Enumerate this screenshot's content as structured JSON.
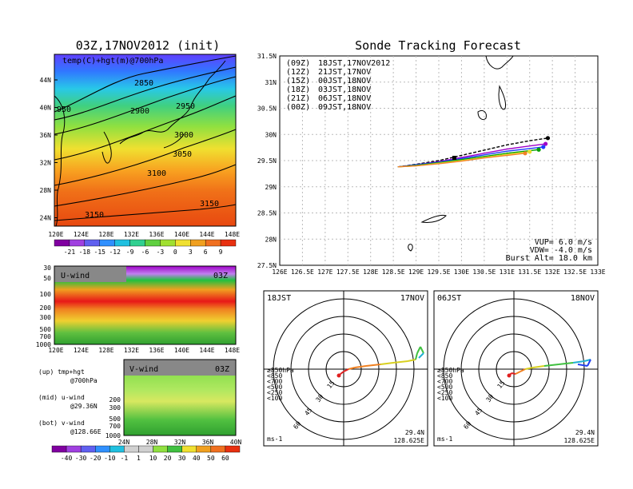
{
  "left": {
    "title": "03Z,17NOV2012 (init)",
    "map_label": "temp(C)+hgt(m)@700hPa",
    "lat_ticks": [
      "44N",
      "40N",
      "36N",
      "32N",
      "28N",
      "24N"
    ],
    "lon_ticks": [
      "120E",
      "124E",
      "128E",
      "132E",
      "136E",
      "140E",
      "144E",
      "148E"
    ],
    "contour_labels": [
      "2850",
      "2900",
      "2950",
      "950",
      "3000",
      "3050",
      "3100",
      "3150",
      "3150"
    ],
    "colorbar_temp": [
      "-21",
      "-18",
      "-15",
      "-12",
      "-9",
      "-6",
      "-3",
      "0",
      "3",
      "6",
      "9"
    ],
    "uwind": {
      "label": "U-wind",
      "time": "03Z",
      "y_ticks": [
        "30",
        "50",
        "100",
        "200",
        "300",
        "500",
        "700",
        "1000"
      ],
      "x_ticks": [
        "120E",
        "124E",
        "128E",
        "132E",
        "136E",
        "140E",
        "144E",
        "148E"
      ]
    },
    "vwind": {
      "label": "V-wind",
      "time": "03Z",
      "y_ticks": [
        "200",
        "300",
        "500",
        "700",
        "1000"
      ],
      "x_ticks": [
        "24N",
        "28N",
        "32N",
        "36N",
        "40N"
      ]
    },
    "legend": [
      "(up) tmp+hgt",
      "@700hPa",
      "(mid) u-wind",
      "@29.36N",
      "(bot) v-wind",
      "@128.66E"
    ],
    "colorbar_wind": [
      "-40",
      "-30",
      "-20",
      "-10",
      "-1",
      "1",
      "10",
      "20",
      "30",
      "40",
      "50",
      "60"
    ]
  },
  "tracking": {
    "title": "Sonde Tracking Forecast",
    "lat_ticks": [
      "31.5N",
      "31N",
      "30.5N",
      "30N",
      "29.5N",
      "29N",
      "28.5N",
      "28N",
      "27.5N"
    ],
    "lon_ticks": [
      "126E",
      "126.5E",
      "127E",
      "127.5E",
      "128E",
      "128.5E",
      "129E",
      "129.5E",
      "130E",
      "130.5E",
      "131E",
      "131.5E",
      "132E",
      "132.5E",
      "133E"
    ],
    "runs": [
      {
        "code": "(09Z)",
        "label": "18JST,17NOV2012",
        "color": "#000000"
      },
      {
        "code": "(12Z)",
        "label": "21JST,17NOV",
        "color": "#a000c8"
      },
      {
        "code": "(15Z)",
        "label": "00JST,18NOV",
        "color": "#1e3cff"
      },
      {
        "code": "(18Z)",
        "label": "03JST,18NOV",
        "color": "#00a000"
      },
      {
        "code": "(21Z)",
        "label": "06JST,18NOV",
        "color": "#e6dc32"
      },
      {
        "code": "(00Z)",
        "label": "09JST,18NOV",
        "color": "#f08228"
      }
    ],
    "params": [
      "VUP= 6.0 m/s",
      "VDW= -4.0 m/s",
      "Burst Alt= 18.0 km"
    ]
  },
  "hodographs": [
    {
      "time": "18JST",
      "date": "17NOV",
      "rings": [
        "15",
        "30",
        "45",
        "60"
      ],
      "unit": "ms-1",
      "lat": "29.4N",
      "lon": "128.625E",
      "levels": [
        "≥850hPa",
        "<850",
        "<700",
        "<500",
        "<250",
        "<100"
      ]
    },
    {
      "time": "06JST",
      "date": "18NOV",
      "rings": [
        "15",
        "30",
        "45",
        "60"
      ],
      "unit": "ms-1",
      "lat": "29.4N",
      "lon": "128.625E",
      "levels": [
        "≥850hPa",
        "<850",
        "<700",
        "<500",
        "<250",
        "<100"
      ]
    }
  ],
  "chart_data": [
    {
      "type": "heatmap",
      "title": "03Z,17NOV2012 (init)",
      "subtitle": "temp(C)+hgt(m)@700hPa",
      "x_ticks": [
        "120E",
        "124E",
        "128E",
        "132E",
        "136E",
        "140E",
        "144E",
        "148E"
      ],
      "y_ticks": [
        "44N",
        "40N",
        "36N",
        "32N",
        "28N",
        "24N"
      ],
      "levels": [
        -21,
        -18,
        -15,
        -12,
        -9,
        -6,
        -3,
        0,
        3,
        6,
        9
      ],
      "contours": [
        2850,
        2900,
        2950,
        3000,
        3050,
        3100,
        3150
      ]
    },
    {
      "type": "heatmap",
      "title": "U-wind",
      "y_ticks": [
        "30",
        "50",
        "100",
        "200",
        "300",
        "500",
        "700",
        "1000"
      ],
      "x_ticks": [
        "120E",
        "124E",
        "128E",
        "132E",
        "136E",
        "140E",
        "144E",
        "148E"
      ]
    },
    {
      "type": "heatmap",
      "title": "V-wind",
      "y_ticks": [
        "200",
        "300",
        "500",
        "700",
        "1000"
      ],
      "x_ticks": [
        "24N",
        "28N",
        "32N",
        "36N",
        "40N"
      ],
      "levels": [
        -40,
        -30,
        -20,
        -10,
        -1,
        1,
        10,
        20,
        30,
        40,
        50,
        60
      ]
    },
    {
      "type": "line",
      "title": "Sonde Tracking Forecast",
      "xlim": [
        126,
        133
      ],
      "ylim": [
        27.5,
        31.5
      ],
      "series": [
        {
          "name": "(09Z) 18JST,17NOV2012",
          "color": "#000000",
          "x": [
            128.6,
            129.0,
            129.5,
            130.0,
            130.5,
            131.0,
            131.5,
            131.9
          ],
          "y": [
            29.38,
            29.43,
            29.5,
            29.6,
            29.7,
            29.8,
            29.88,
            29.93
          ]
        },
        {
          "name": "(12Z) 21JST,17NOV",
          "color": "#a000c8",
          "x": [
            128.6,
            129.0,
            129.5,
            130.0,
            130.5,
            131.0,
            131.5,
            131.85
          ],
          "y": [
            29.38,
            29.42,
            29.48,
            29.56,
            29.64,
            29.72,
            29.78,
            29.82
          ]
        },
        {
          "name": "(15Z) 00JST,18NOV",
          "color": "#1e3cff",
          "x": [
            128.6,
            129.0,
            129.5,
            130.0,
            130.5,
            131.0,
            131.5,
            131.8
          ],
          "y": [
            29.38,
            29.42,
            29.47,
            29.54,
            29.61,
            29.68,
            29.73,
            29.76
          ]
        },
        {
          "name": "(18Z) 03JST,18NOV",
          "color": "#00a000",
          "x": [
            128.6,
            129.0,
            129.5,
            130.0,
            130.5,
            131.0,
            131.5,
            131.7
          ],
          "y": [
            29.38,
            29.41,
            29.46,
            29.52,
            29.58,
            29.64,
            29.69,
            29.71
          ]
        },
        {
          "name": "(21Z) 06JST,18NOV",
          "color": "#e6dc32",
          "x": [
            128.6,
            129.0,
            129.5,
            130.0,
            130.5,
            131.0,
            131.5
          ],
          "y": [
            29.38,
            29.4,
            29.45,
            29.5,
            29.56,
            29.62,
            29.67
          ]
        },
        {
          "name": "(00Z) 09JST,18NOV",
          "color": "#f08228",
          "x": [
            128.6,
            129.0,
            129.5,
            130.0,
            130.5,
            131.0,
            131.4
          ],
          "y": [
            29.38,
            29.4,
            29.44,
            29.49,
            29.55,
            29.6,
            29.64
          ]
        }
      ]
    }
  ]
}
